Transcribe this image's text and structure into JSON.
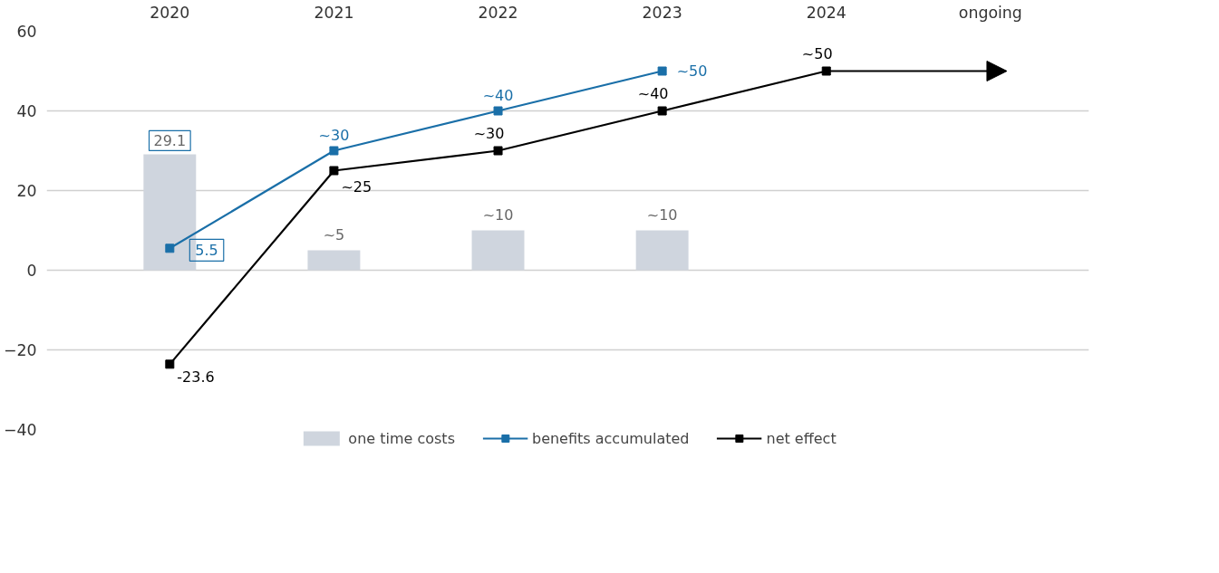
{
  "chart_data": {
    "type": "bar",
    "categories": [
      "2020",
      "2021",
      "2022",
      "2023",
      "2024",
      "ongoing"
    ],
    "series": [
      {
        "name": "one time costs",
        "color": "#cfd5de",
        "values": [
          29.1,
          5,
          10,
          10,
          null,
          null
        ],
        "value_labels": [
          "29.1",
          "~5",
          "~10",
          "~10",
          null,
          null
        ]
      },
      {
        "name": "benefits accumulated",
        "type": "line",
        "color": "#1a6fa8",
        "values": [
          5.5,
          30,
          40,
          50,
          null,
          null
        ],
        "value_labels": [
          "5.5",
          "~30",
          "~40",
          "~50",
          null,
          null
        ]
      },
      {
        "name": "net effect",
        "type": "line",
        "color": "#000000",
        "values": [
          -23.6,
          25,
          30,
          40,
          50,
          50
        ],
        "value_labels": [
          "-23.6",
          "~25",
          "~30",
          "~40",
          "~50",
          null
        ]
      }
    ],
    "ylim": [
      -40,
      60
    ],
    "yticks": [
      -40,
      -20,
      0,
      20,
      40,
      60
    ],
    "grid": "y",
    "legend": "bottom",
    "marker": "square",
    "line_style": "solid"
  }
}
